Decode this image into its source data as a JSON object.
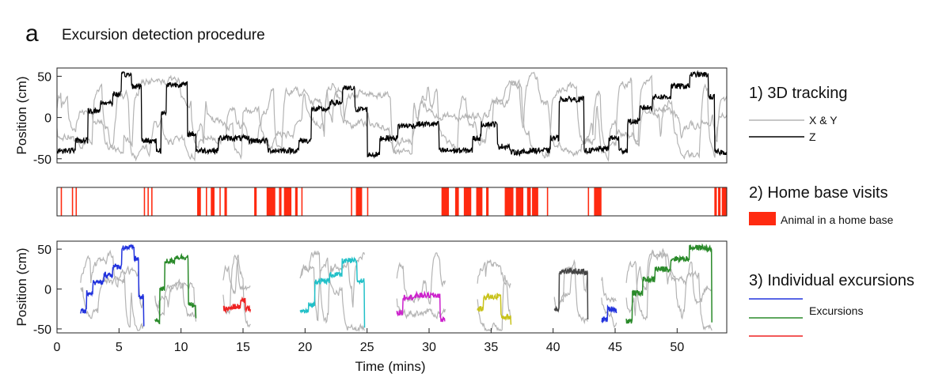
{
  "panel": {
    "letter": "a",
    "title": "Excursion detection procedure"
  },
  "steps": {
    "tracking": "1) 3D tracking",
    "home_base": "2) Home base visits",
    "excursions": "3) Individual excursions"
  },
  "legends": {
    "xy": "X & Y",
    "z": "Z",
    "home_base": "Animal in a home base",
    "excursions": "Excursions"
  },
  "colors": {
    "xy": "#b4b4b4",
    "z": "#000000",
    "home_base": "#ff2a10",
    "excursion_legend": [
      "#2233dd",
      "#2a8a2a",
      "#ee2222"
    ]
  },
  "chart_data": [
    {
      "type": "line",
      "name": "3D tracking",
      "ylabel": "Position (cm)",
      "xlim": [
        0,
        54
      ],
      "ylim": [
        -55,
        60
      ],
      "yticks": [
        -50,
        0,
        50
      ],
      "z_levels": [
        {
          "x0": 0.0,
          "x1": 1.5,
          "y": -40
        },
        {
          "x0": 1.5,
          "x1": 2.5,
          "y": -28
        },
        {
          "x0": 2.5,
          "x1": 3.5,
          "y": 8
        },
        {
          "x0": 3.5,
          "x1": 4.5,
          "y": 18
        },
        {
          "x0": 4.5,
          "x1": 5.2,
          "y": 28
        },
        {
          "x0": 5.2,
          "x1": 6.0,
          "y": 52
        },
        {
          "x0": 6.0,
          "x1": 6.8,
          "y": 38
        },
        {
          "x0": 6.8,
          "x1": 8.0,
          "y": -28
        },
        {
          "x0": 8.0,
          "x1": 8.4,
          "y": -40
        },
        {
          "x0": 8.4,
          "x1": 8.8,
          "y": 5
        },
        {
          "x0": 8.8,
          "x1": 10.5,
          "y": 40
        },
        {
          "x0": 10.5,
          "x1": 11.2,
          "y": -20
        },
        {
          "x0": 11.2,
          "x1": 13.0,
          "y": -40
        },
        {
          "x0": 13.0,
          "x1": 15.5,
          "y": -25
        },
        {
          "x0": 15.5,
          "x1": 17.0,
          "y": -28
        },
        {
          "x0": 17.0,
          "x1": 19.5,
          "y": -40
        },
        {
          "x0": 19.5,
          "x1": 20.5,
          "y": -28
        },
        {
          "x0": 20.5,
          "x1": 22.0,
          "y": 10
        },
        {
          "x0": 22.0,
          "x1": 23.0,
          "y": 18
        },
        {
          "x0": 23.0,
          "x1": 24.0,
          "y": 35
        },
        {
          "x0": 24.0,
          "x1": 25.0,
          "y": 10
        },
        {
          "x0": 25.0,
          "x1": 26.0,
          "y": -45
        },
        {
          "x0": 26.0,
          "x1": 27.5,
          "y": -25
        },
        {
          "x0": 27.5,
          "x1": 29.0,
          "y": -10
        },
        {
          "x0": 29.0,
          "x1": 30.8,
          "y": -8
        },
        {
          "x0": 30.8,
          "x1": 33.5,
          "y": -40
        },
        {
          "x0": 33.5,
          "x1": 34.2,
          "y": -25
        },
        {
          "x0": 34.2,
          "x1": 35.5,
          "y": -8
        },
        {
          "x0": 35.5,
          "x1": 36.5,
          "y": -35
        },
        {
          "x0": 36.5,
          "x1": 38.0,
          "y": -42
        },
        {
          "x0": 38.0,
          "x1": 39.8,
          "y": -40
        },
        {
          "x0": 39.8,
          "x1": 40.5,
          "y": -25
        },
        {
          "x0": 40.5,
          "x1": 42.5,
          "y": 22
        },
        {
          "x0": 42.5,
          "x1": 43.5,
          "y": -40
        },
        {
          "x0": 43.5,
          "x1": 44.5,
          "y": -38
        },
        {
          "x0": 44.5,
          "x1": 45.3,
          "y": -25
        },
        {
          "x0": 45.3,
          "x1": 46.0,
          "y": -40
        },
        {
          "x0": 46.0,
          "x1": 47.0,
          "y": -5
        },
        {
          "x0": 47.0,
          "x1": 48.0,
          "y": 12
        },
        {
          "x0": 48.0,
          "x1": 49.5,
          "y": 25
        },
        {
          "x0": 49.5,
          "x1": 51.0,
          "y": 38
        },
        {
          "x0": 51.0,
          "x1": 52.5,
          "y": 52
        },
        {
          "x0": 52.5,
          "x1": 53.0,
          "y": 25
        },
        {
          "x0": 53.0,
          "x1": 54.0,
          "y": -42
        }
      ]
    },
    {
      "type": "bar",
      "name": "Home base visits",
      "xlim": [
        0,
        54
      ],
      "intervals": [
        [
          0.3,
          0.4
        ],
        [
          1.2,
          1.3
        ],
        [
          1.5,
          1.6
        ],
        [
          7.0,
          7.1
        ],
        [
          7.3,
          7.4
        ],
        [
          7.6,
          7.7
        ],
        [
          11.3,
          11.6
        ],
        [
          12.0,
          12.1
        ],
        [
          12.4,
          12.7
        ],
        [
          13.1,
          13.2
        ],
        [
          13.5,
          13.7
        ],
        [
          15.9,
          16.1
        ],
        [
          16.9,
          17.6
        ],
        [
          17.9,
          18.1
        ],
        [
          18.3,
          18.9
        ],
        [
          19.2,
          19.4
        ],
        [
          19.7,
          19.8
        ],
        [
          23.7,
          23.8
        ],
        [
          24.1,
          24.6
        ],
        [
          25.0,
          25.1
        ],
        [
          31.0,
          31.6
        ],
        [
          32.1,
          32.4
        ],
        [
          32.8,
          33.4
        ],
        [
          33.8,
          34.3
        ],
        [
          34.6,
          34.8
        ],
        [
          36.1,
          36.8
        ],
        [
          37.0,
          37.6
        ],
        [
          37.9,
          38.2
        ],
        [
          38.3,
          38.8
        ],
        [
          39.5,
          39.6
        ],
        [
          42.8,
          42.9
        ],
        [
          43.3,
          43.9
        ],
        [
          53.0,
          53.2
        ],
        [
          53.3,
          53.5
        ],
        [
          53.6,
          54.0
        ]
      ]
    },
    {
      "type": "line",
      "name": "Individual excursions",
      "xlabel": "Time (mins)",
      "ylabel": "Position (cm)",
      "xlim": [
        0,
        54
      ],
      "ylim": [
        -55,
        60
      ],
      "xticks": [
        0,
        5,
        10,
        15,
        20,
        25,
        30,
        35,
        40,
        45,
        50
      ],
      "yticks": [
        -50,
        0,
        50
      ],
      "excursions": [
        {
          "x0": 1.9,
          "x1": 7.0,
          "color": "#2233dd",
          "levels": [
            [
              1.9,
              -28
            ],
            [
              2.4,
              -5
            ],
            [
              2.9,
              8
            ],
            [
              3.8,
              18
            ],
            [
              4.5,
              28
            ],
            [
              5.2,
              52
            ],
            [
              6.2,
              38
            ],
            [
              6.6,
              -10
            ],
            [
              7.0,
              -45
            ]
          ]
        },
        {
          "x0": 7.9,
          "x1": 11.2,
          "color": "#2a8a2a",
          "levels": [
            [
              7.9,
              -40
            ],
            [
              8.3,
              0
            ],
            [
              8.7,
              35
            ],
            [
              9.5,
              40
            ],
            [
              10.3,
              40
            ],
            [
              10.6,
              -20
            ],
            [
              11.2,
              -40
            ]
          ]
        },
        {
          "x0": 13.4,
          "x1": 15.6,
          "color": "#ee2222",
          "levels": [
            [
              13.4,
              -25
            ],
            [
              14.2,
              -22
            ],
            [
              14.8,
              -15
            ],
            [
              15.2,
              -25
            ],
            [
              15.6,
              -22
            ]
          ]
        },
        {
          "x0": 19.6,
          "x1": 24.8,
          "color": "#22c0c8",
          "levels": [
            [
              19.6,
              -28
            ],
            [
              20.3,
              -20
            ],
            [
              20.8,
              10
            ],
            [
              22.0,
              18
            ],
            [
              23.0,
              35
            ],
            [
              23.8,
              35
            ],
            [
              24.2,
              10
            ],
            [
              24.8,
              -45
            ]
          ]
        },
        {
          "x0": 27.4,
          "x1": 31.3,
          "color": "#cc22cc",
          "levels": [
            [
              27.4,
              -30
            ],
            [
              27.9,
              -10
            ],
            [
              29.0,
              -8
            ],
            [
              30.6,
              -8
            ],
            [
              30.9,
              -38
            ],
            [
              31.3,
              -40
            ]
          ]
        },
        {
          "x0": 33.9,
          "x1": 36.6,
          "color": "#c8c21a",
          "levels": [
            [
              33.9,
              -25
            ],
            [
              34.4,
              -10
            ],
            [
              35.5,
              -8
            ],
            [
              35.8,
              -35
            ],
            [
              36.6,
              -45
            ]
          ]
        },
        {
          "x0": 40.1,
          "x1": 42.8,
          "color": "#444444",
          "levels": [
            [
              40.1,
              -25
            ],
            [
              40.5,
              22
            ],
            [
              42.5,
              20
            ],
            [
              42.8,
              -40
            ]
          ]
        },
        {
          "x0": 43.9,
          "x1": 45.1,
          "color": "#2233dd",
          "levels": [
            [
              43.9,
              -38
            ],
            [
              44.4,
              -25
            ],
            [
              45.1,
              -30
            ]
          ]
        },
        {
          "x0": 45.9,
          "x1": 52.8,
          "color": "#2a8a2a",
          "levels": [
            [
              45.9,
              -40
            ],
            [
              46.4,
              -5
            ],
            [
              47.2,
              12
            ],
            [
              48.2,
              25
            ],
            [
              49.5,
              38
            ],
            [
              51.0,
              52
            ],
            [
              52.4,
              50
            ],
            [
              52.8,
              -40
            ]
          ]
        }
      ]
    }
  ]
}
